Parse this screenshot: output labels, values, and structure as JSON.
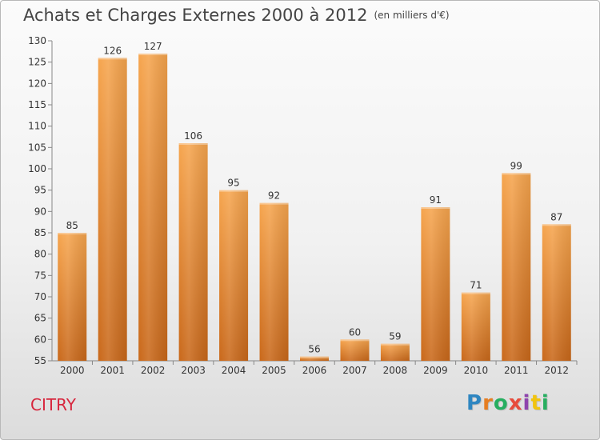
{
  "title": "Achats et Charges Externes 2000 à 2012",
  "unit": "(en milliers d'€)",
  "commune": "CITRY",
  "logo": {
    "text": "Proxiti",
    "colors": [
      "#2e86c1",
      "#e67e22",
      "#27ae60",
      "#e74c3c",
      "#8e44ad",
      "#f1c40f",
      "#27ae60"
    ]
  },
  "colors": {
    "bar_top": "#f6a54e",
    "bar_bottom": "#c9681a",
    "commune": "#d7263d"
  },
  "chart_data": {
    "type": "bar",
    "title": "Achats et Charges Externes 2000 à 2012",
    "subtitle": "(en milliers d'€)",
    "categories": [
      "2000",
      "2001",
      "2002",
      "2003",
      "2004",
      "2005",
      "2006",
      "2007",
      "2008",
      "2009",
      "2010",
      "2011",
      "2012"
    ],
    "values": [
      85,
      126,
      127,
      106,
      95,
      92,
      56,
      60,
      59,
      91,
      71,
      99,
      87
    ],
    "ylim": [
      55,
      130
    ],
    "yticks": [
      55,
      60,
      65,
      70,
      75,
      80,
      85,
      90,
      95,
      100,
      105,
      110,
      115,
      120,
      125,
      130
    ],
    "grid": false,
    "legend": "none"
  }
}
